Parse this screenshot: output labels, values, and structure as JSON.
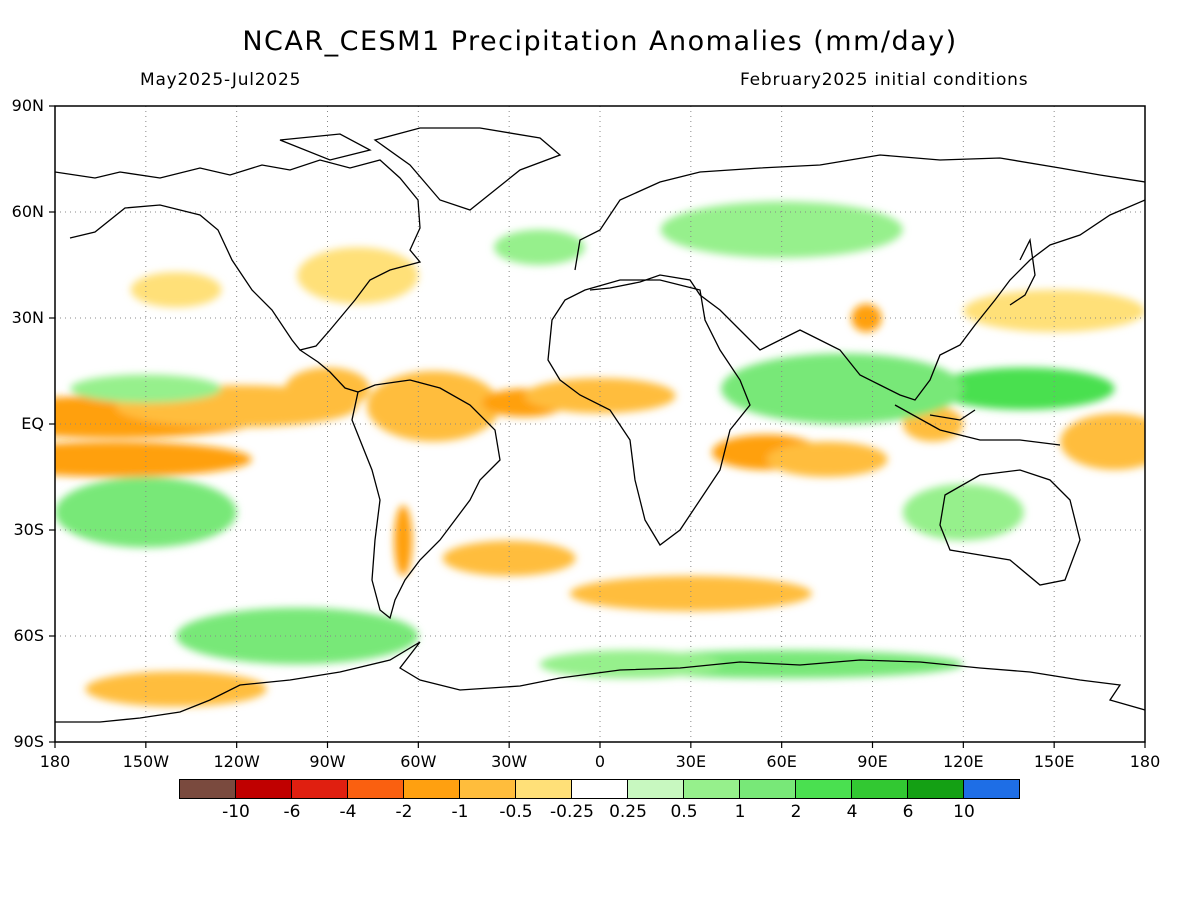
{
  "header": {
    "title": "NCAR_CESM1 Precipitation Anomalies (mm/day)",
    "period": "May2025-Jul2025",
    "init": "February2025 initial conditions"
  },
  "axes": {
    "lat_labels": [
      "90N",
      "60N",
      "30N",
      "EQ",
      "30S",
      "60S",
      "90S"
    ],
    "lon_labels": [
      "180",
      "150W",
      "120W",
      "90W",
      "60W",
      "30W",
      "0",
      "30E",
      "60E",
      "90E",
      "120E",
      "150E",
      "180"
    ],
    "lat_range": [
      -90,
      90
    ],
    "lon_range": [
      -180,
      180
    ],
    "grid": "dotted"
  },
  "colorbar": {
    "colors": [
      "#7a4a3e",
      "#c00000",
      "#e01f10",
      "#fa6010",
      "#ffa010",
      "#ffbd3c",
      "#ffe078",
      "#ffffff",
      "#c8f8c0",
      "#96f08c",
      "#78e878",
      "#4ae050",
      "#32c832",
      "#14a014",
      "#1e6ee6"
    ],
    "labels": [
      "-10",
      "-6",
      "-4",
      "-2",
      "-1",
      "-0.5",
      "-0.25",
      "0.25",
      "0.5",
      "1",
      "2",
      "4",
      "6",
      "10"
    ]
  },
  "map_data": {
    "type": "heatmap",
    "anomalies": [
      {
        "lon": -160,
        "lat": 2,
        "value": -2,
        "w": 50,
        "h": 6
      },
      {
        "lon": -160,
        "lat": -10,
        "value": -2,
        "w": 45,
        "h": 5
      },
      {
        "lon": -120,
        "lat": 5,
        "value": -1,
        "w": 40,
        "h": 6
      },
      {
        "lon": -90,
        "lat": 10,
        "value": -1,
        "w": 14,
        "h": 6
      },
      {
        "lon": -55,
        "lat": 5,
        "value": -1,
        "w": 22,
        "h": 10
      },
      {
        "lon": -25,
        "lat": 6,
        "value": -2,
        "w": 14,
        "h": 4
      },
      {
        "lon": 0,
        "lat": 8,
        "value": -1,
        "w": 25,
        "h": 5
      },
      {
        "lon": 55,
        "lat": -8,
        "value": -2,
        "w": 18,
        "h": 5
      },
      {
        "lon": 75,
        "lat": -10,
        "value": -1,
        "w": 20,
        "h": 5
      },
      {
        "lon": 110,
        "lat": 0,
        "value": -1,
        "w": 10,
        "h": 5
      },
      {
        "lon": 170,
        "lat": -5,
        "value": -1,
        "w": 18,
        "h": 8
      },
      {
        "lon": 88,
        "lat": 30,
        "value": -2,
        "w": 5,
        "h": 4
      },
      {
        "lon": -65,
        "lat": -33,
        "value": -2,
        "w": 3,
        "h": 10
      },
      {
        "lon": -30,
        "lat": -38,
        "value": -1,
        "w": 22,
        "h": 5
      },
      {
        "lon": 30,
        "lat": -48,
        "value": -1,
        "w": 40,
        "h": 5
      },
      {
        "lon": -140,
        "lat": -75,
        "value": -1,
        "w": 30,
        "h": 5
      },
      {
        "lon": -140,
        "lat": 38,
        "value": -0.5,
        "w": 15,
        "h": 5
      },
      {
        "lon": -80,
        "lat": 42,
        "value": -0.5,
        "w": 20,
        "h": 8
      },
      {
        "lon": 150,
        "lat": 32,
        "value": -0.5,
        "w": 30,
        "h": 6
      },
      {
        "lon": 140,
        "lat": 10,
        "value": 2,
        "w": 30,
        "h": 6
      },
      {
        "lon": 80,
        "lat": 10,
        "value": 1,
        "w": 40,
        "h": 10
      },
      {
        "lon": -150,
        "lat": -25,
        "value": 1,
        "w": 30,
        "h": 10
      },
      {
        "lon": -100,
        "lat": -60,
        "value": 1,
        "w": 40,
        "h": 8
      },
      {
        "lon": 60,
        "lat": 55,
        "value": 0.5,
        "w": 40,
        "h": 8
      },
      {
        "lon": -150,
        "lat": 10,
        "value": 0.5,
        "w": 25,
        "h": 4
      },
      {
        "lon": -20,
        "lat": 50,
        "value": 0.5,
        "w": 15,
        "h": 5
      },
      {
        "lon": 120,
        "lat": -25,
        "value": 0.5,
        "w": 20,
        "h": 8
      },
      {
        "lon": 60,
        "lat": -68,
        "value": 1,
        "w": 60,
        "h": 4
      },
      {
        "lon": 10,
        "lat": -68,
        "value": 0.5,
        "w": 30,
        "h": 4
      }
    ]
  }
}
